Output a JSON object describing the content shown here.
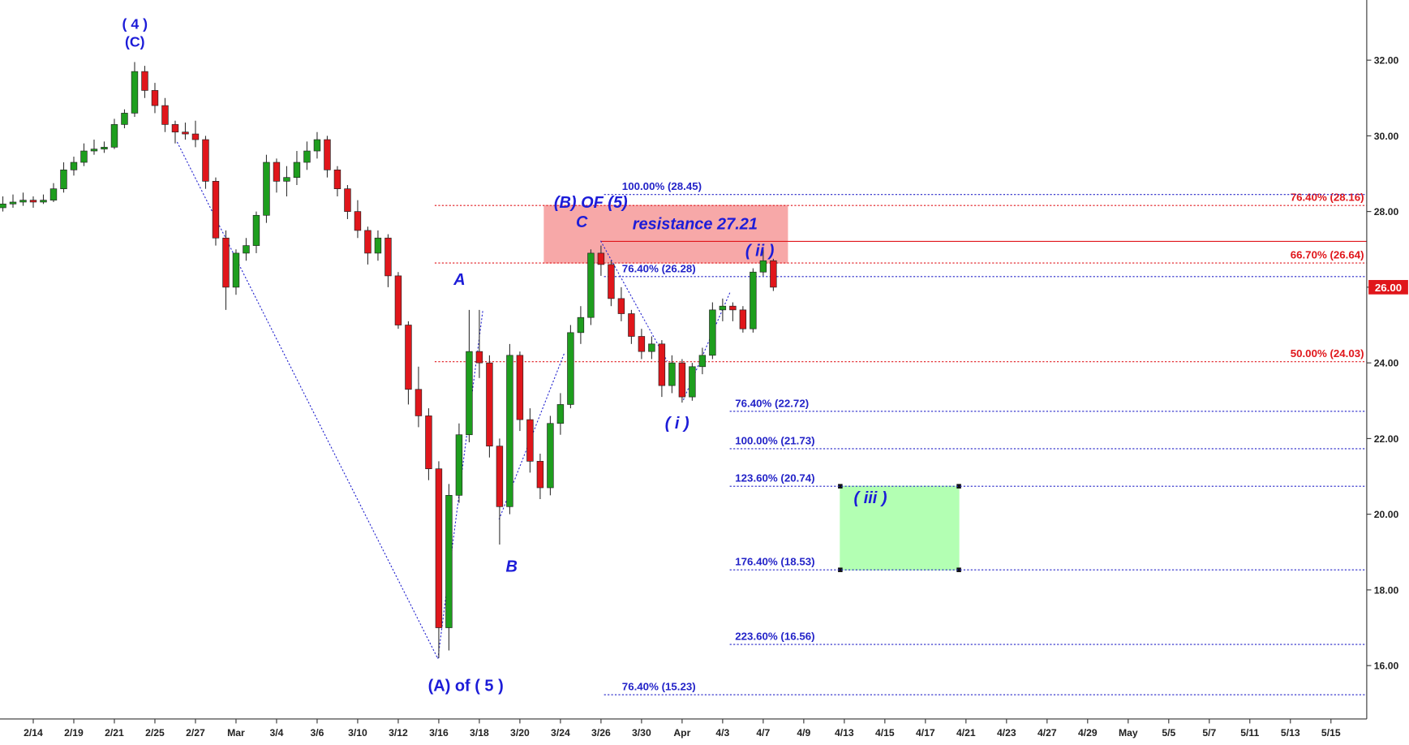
{
  "chart_data": {
    "type": "candlestick",
    "open": [
      28.1,
      28.2,
      28.25,
      28.3,
      28.25,
      28.3,
      28.6,
      29.1,
      29.3,
      29.6,
      29.65,
      29.7,
      30.3,
      30.6,
      31.7,
      31.2,
      30.8,
      30.3,
      30.1,
      30.05,
      29.9,
      28.8,
      27.3,
      26.0,
      26.9,
      27.1,
      27.9,
      29.3,
      28.8,
      28.9,
      29.3,
      29.6,
      29.9,
      29.1,
      28.6,
      28.0,
      27.5,
      26.9,
      27.3,
      26.3,
      25.0,
      23.3,
      22.6,
      21.2,
      17.0,
      20.5,
      22.1,
      24.3,
      24.0,
      21.8,
      20.2,
      24.2,
      22.5,
      21.4,
      20.7,
      22.4,
      22.9,
      24.8,
      25.2,
      26.9,
      26.6,
      25.7,
      25.3,
      24.7,
      24.3,
      24.5,
      23.4,
      24.0,
      23.1,
      23.9,
      24.2,
      25.4,
      25.5,
      25.4,
      24.9,
      26.4,
      26.7
    ],
    "high": [
      28.4,
      28.45,
      28.5,
      28.4,
      28.45,
      28.75,
      29.3,
      29.45,
      29.8,
      29.9,
      29.85,
      30.45,
      30.7,
      31.95,
      31.85,
      31.4,
      31.0,
      30.4,
      30.35,
      30.4,
      30.0,
      28.9,
      27.5,
      27.0,
      27.3,
      28.0,
      29.5,
      29.4,
      29.2,
      29.6,
      29.85,
      30.1,
      30.0,
      29.2,
      28.7,
      28.3,
      27.6,
      27.5,
      27.4,
      26.4,
      25.1,
      23.9,
      22.8,
      21.4,
      20.8,
      22.4,
      25.4,
      25.4,
      24.2,
      22.0,
      24.5,
      24.3,
      22.8,
      21.6,
      22.6,
      23.2,
      25.0,
      25.5,
      27.0,
      27.1,
      26.7,
      26.0,
      25.4,
      24.9,
      24.7,
      24.6,
      24.2,
      24.1,
      24.0,
      24.4,
      25.6,
      25.7,
      25.6,
      25.5,
      26.5,
      27.0,
      26.75
    ],
    "low": [
      28.0,
      28.1,
      28.15,
      28.1,
      28.2,
      28.25,
      28.5,
      28.95,
      29.2,
      29.5,
      29.55,
      29.65,
      30.2,
      30.5,
      31.0,
      30.6,
      30.1,
      29.8,
      29.9,
      29.7,
      28.6,
      27.1,
      25.4,
      25.8,
      26.7,
      26.9,
      27.7,
      28.5,
      28.4,
      28.7,
      29.1,
      29.4,
      28.9,
      28.4,
      27.8,
      27.3,
      26.6,
      26.7,
      26.0,
      24.9,
      22.9,
      22.3,
      20.9,
      16.2,
      16.4,
      20.3,
      21.9,
      23.6,
      21.5,
      19.2,
      20.0,
      22.2,
      21.1,
      20.4,
      20.5,
      22.1,
      22.8,
      24.5,
      25.0,
      26.3,
      25.5,
      25.1,
      24.5,
      24.1,
      24.1,
      23.1,
      23.2,
      22.95,
      23.0,
      23.7,
      24.1,
      25.1,
      25.1,
      24.8,
      24.8,
      26.3,
      25.9
    ],
    "close": [
      28.2,
      28.25,
      28.3,
      28.25,
      28.3,
      28.6,
      29.1,
      29.3,
      29.6,
      29.65,
      29.7,
      30.3,
      30.6,
      31.7,
      31.2,
      30.8,
      30.3,
      30.1,
      30.05,
      29.9,
      28.8,
      27.3,
      26.0,
      26.9,
      27.1,
      27.9,
      29.3,
      28.8,
      28.9,
      29.3,
      29.6,
      29.9,
      29.1,
      28.6,
      28.0,
      27.5,
      26.9,
      27.3,
      26.3,
      25.0,
      23.3,
      22.6,
      21.2,
      17.0,
      20.5,
      22.1,
      24.3,
      24.0,
      21.8,
      20.2,
      24.2,
      22.5,
      21.4,
      20.7,
      22.4,
      22.9,
      24.8,
      25.2,
      26.9,
      26.6,
      25.7,
      25.3,
      24.7,
      24.3,
      24.5,
      23.4,
      24.0,
      23.1,
      23.9,
      24.2,
      25.4,
      25.5,
      25.4,
      24.9,
      26.4,
      26.7,
      26.0
    ],
    "up_color": "#1e9e1e",
    "down_color": "#e0161b",
    "xlim": [
      -0.28,
      134.53
    ],
    "xticks": [
      {
        "value": 3,
        "label": "2/14"
      },
      {
        "value": 7,
        "label": "2/19"
      },
      {
        "value": 11,
        "label": "2/21"
      },
      {
        "value": 15,
        "label": "2/25"
      },
      {
        "value": 19,
        "label": "2/27"
      },
      {
        "value": 23,
        "label": "Mar"
      },
      {
        "value": 27,
        "label": "3/4"
      },
      {
        "value": 31,
        "label": "3/6"
      },
      {
        "value": 35,
        "label": "3/10"
      },
      {
        "value": 39,
        "label": "3/12"
      },
      {
        "value": 43,
        "label": "3/16"
      },
      {
        "value": 47,
        "label": "3/18"
      },
      {
        "value": 51,
        "label": "3/20"
      },
      {
        "value": 55,
        "label": "3/24"
      },
      {
        "value": 59,
        "label": "3/26"
      },
      {
        "value": 63,
        "label": "3/30"
      },
      {
        "value": 67,
        "label": "Apr"
      },
      {
        "value": 71,
        "label": "4/3"
      },
      {
        "value": 75,
        "label": "4/7"
      },
      {
        "value": 79,
        "label": "4/9"
      },
      {
        "value": 83,
        "label": "4/13"
      },
      {
        "value": 87,
        "label": "4/15"
      },
      {
        "value": 91,
        "label": "4/17"
      },
      {
        "value": 95,
        "label": "4/21"
      },
      {
        "value": 99,
        "label": "4/23"
      },
      {
        "value": 103,
        "label": "4/27"
      },
      {
        "value": 107,
        "label": "4/29"
      },
      {
        "value": 111,
        "label": "May"
      },
      {
        "value": 115,
        "label": "5/5"
      },
      {
        "value": 119,
        "label": "5/7"
      },
      {
        "value": 123,
        "label": "5/11"
      },
      {
        "value": 127,
        "label": "5/13"
      },
      {
        "value": 131,
        "label": "5/15"
      }
    ],
    "ylim": [
      14.59,
      33.59
    ],
    "yticks": [
      {
        "value": 16,
        "label": "16.00"
      },
      {
        "value": 18,
        "label": "18.00"
      },
      {
        "value": 20,
        "label": "20.00"
      },
      {
        "value": 22,
        "label": "22.00"
      },
      {
        "value": 24,
        "label": "24.00"
      },
      {
        "value": 26,
        "label": "26.00"
      },
      {
        "value": 28,
        "label": "28.00"
      },
      {
        "value": 30,
        "label": "30.00"
      },
      {
        "value": 32,
        "label": "32.00"
      }
    ],
    "levels": [
      {
        "value": 28.16,
        "label": "76.40% (28.16)",
        "color": "#e0161b",
        "style": "dotted",
        "start": 42.6,
        "label_side": "right"
      },
      {
        "value": 28.45,
        "label": "100.00% (28.45)",
        "color": "#2323c8",
        "style": "dotted",
        "start": 59.3,
        "label_side": "left"
      },
      {
        "value": 27.21,
        "color": "#e0161b",
        "style": "solid",
        "start": 59.0
      },
      {
        "value": 26.64,
        "label": "66.70% (26.64)",
        "color": "#e0161b",
        "style": "dotted",
        "start": 42.6,
        "label_side": "right"
      },
      {
        "value": 26.28,
        "label": "76.40% (26.28)",
        "color": "#2323c8",
        "style": "dotted",
        "start": 59.3,
        "label_side": "left"
      },
      {
        "value": 24.03,
        "label": "50.00% (24.03)",
        "color": "#e0161b",
        "style": "dotted",
        "start": 42.6,
        "label_side": "right"
      },
      {
        "value": 22.72,
        "label": "76.40% (22.72)",
        "color": "#2323c8",
        "style": "dotted",
        "start": 71.7,
        "label_side": "left"
      },
      {
        "value": 21.73,
        "label": "100.00% (21.73)",
        "color": "#2323c8",
        "style": "dotted",
        "start": 71.7,
        "label_side": "left"
      },
      {
        "value": 20.74,
        "label": "123.60% (20.74)",
        "color": "#2323c8",
        "style": "dotted",
        "start": 71.7,
        "label_side": "left"
      },
      {
        "value": 18.53,
        "label": "176.40% (18.53)",
        "color": "#2323c8",
        "style": "dotted",
        "start": 71.7,
        "label_side": "left"
      },
      {
        "value": 16.56,
        "label": "223.60% (16.56)",
        "color": "#2323c8",
        "style": "dotted",
        "start": 71.7,
        "label_side": "left"
      },
      {
        "value": 15.23,
        "label": "76.40% (15.23)",
        "color": "#2323c8",
        "style": "dotted",
        "start": 59.3,
        "label_side": "left"
      }
    ],
    "zones": [
      {
        "from": 26.64,
        "to": 28.16,
        "start": 53.4,
        "end": 77.4,
        "color": "#f7a8a8"
      },
      {
        "from": 18.53,
        "to": 20.74,
        "start": 82.6,
        "end": 94.3,
        "color": "#b3ffb3"
      }
    ],
    "annotations": [
      "( 4 )",
      "(C)",
      "A",
      "B",
      "(B) OF (5)",
      "C",
      "resistance 27.21",
      "( ii )",
      "( i )",
      "( iii )",
      "(A) of ( 5 )"
    ],
    "last_price": {
      "value": 26,
      "label": "26.00",
      "color": "#e0161b"
    }
  }
}
